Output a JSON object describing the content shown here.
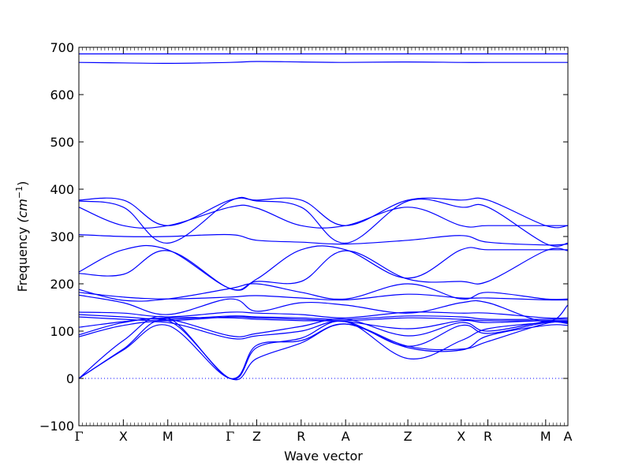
{
  "chart_data": {
    "type": "line",
    "title": "",
    "xlabel": "Wave vector",
    "ylabel_main": "Frequency ",
    "ylabel_unit": "(cm",
    "ylabel_exp": "−1",
    "ylabel_close": ")",
    "ylim": [
      -100,
      700
    ],
    "yticks": [
      -100,
      0,
      100,
      200,
      300,
      400,
      500,
      600,
      700
    ],
    "xlim": [
      0,
      11
    ],
    "kpoints": [
      {
        "label": "Γ",
        "x": 0
      },
      {
        "label": "X",
        "x": 1
      },
      {
        "label": "M",
        "x": 2
      },
      {
        "label": "Γ",
        "x": 3.4
      },
      {
        "label": "Z",
        "x": 4
      },
      {
        "label": "R",
        "x": 5
      },
      {
        "label": "A",
        "x": 6
      },
      {
        "label": "Z",
        "x": 7.4
      },
      {
        "label": "X",
        "x": 8.6
      },
      {
        "label": "R",
        "x": 9.2
      },
      {
        "label": "M",
        "x": 10.5
      },
      {
        "label": "A",
        "x": 11
      }
    ],
    "zero_line": 0,
    "line_color": "#0000ff",
    "series": [
      {
        "x": [
          0,
          1,
          2,
          3.4,
          4,
          5,
          6,
          7.4,
          8.6,
          9.2,
          10.5,
          11
        ],
        "values": [
          668,
          667,
          666,
          668,
          670,
          669,
          668,
          669,
          668,
          668,
          668,
          668
        ]
      },
      {
        "x": [
          0,
          1,
          2,
          3.4,
          4,
          5,
          6,
          7.4,
          8.6,
          9.2,
          10.5,
          11
        ],
        "values": [
          686,
          686,
          686,
          686,
          686,
          686,
          686,
          686,
          686,
          686,
          686,
          686
        ]
      },
      {
        "x": [
          0,
          1,
          2,
          3.4,
          4,
          5,
          6,
          7.4,
          8.6,
          9.2,
          10.5,
          11
        ],
        "values": [
          377,
          377,
          323,
          377,
          377,
          377,
          323,
          377,
          377,
          377,
          323,
          323
        ]
      },
      {
        "x": [
          0,
          1,
          2,
          3.4,
          4,
          5,
          6,
          7.4,
          8.6,
          9.2,
          10.5,
          11
        ],
        "values": [
          375,
          362,
          286,
          375,
          375,
          362,
          286,
          375,
          362,
          362,
          285,
          286
        ]
      },
      {
        "x": [
          0,
          1,
          2,
          3.4,
          4,
          5,
          6,
          7.4,
          8.6,
          9.2,
          10.5,
          11
        ],
        "values": [
          362,
          323,
          323,
          362,
          360,
          323,
          323,
          362,
          323,
          323,
          323,
          323
        ]
      },
      {
        "x": [
          0,
          1,
          2,
          3.4,
          4,
          5,
          6,
          7.4,
          8.6,
          9.2,
          10.5,
          11
        ],
        "values": [
          304,
          300,
          300,
          304,
          292,
          288,
          284,
          292,
          302,
          288,
          282,
          284
        ]
      },
      {
        "x": [
          0,
          1,
          2,
          3.4,
          4,
          5,
          6,
          7.4,
          8.6,
          9.2,
          10.5,
          11
        ],
        "values": [
          225,
          272,
          272,
          190,
          210,
          272,
          272,
          212,
          272,
          272,
          272,
          272
        ]
      },
      {
        "x": [
          0,
          1,
          2,
          3.4,
          4,
          5,
          6,
          7.4,
          8.6,
          9.2,
          10.5,
          11
        ],
        "values": [
          222,
          220,
          270,
          190,
          205,
          205,
          270,
          210,
          205,
          205,
          270,
          270
        ]
      },
      {
        "x": [
          0,
          1,
          2,
          3.4,
          4,
          5,
          6,
          7.4,
          8.6,
          9.2,
          10.5,
          11
        ],
        "values": [
          188,
          165,
          168,
          190,
          200,
          182,
          168,
          200,
          168,
          182,
          168,
          168
        ]
      },
      {
        "x": [
          0,
          1,
          2,
          3.4,
          4,
          5,
          6,
          7.4,
          8.6,
          9.2,
          10.5,
          11
        ],
        "values": [
          182,
          172,
          168,
          172,
          175,
          170,
          166,
          178,
          170,
          170,
          166,
          166
        ]
      },
      {
        "x": [
          0,
          1,
          2,
          3.4,
          4,
          5,
          6,
          7.4,
          8.6,
          9.2,
          10.5,
          11
        ],
        "values": [
          176,
          160,
          135,
          168,
          142,
          160,
          155,
          138,
          160,
          160,
          120,
          155
        ]
      },
      {
        "x": [
          0,
          1,
          2,
          3.4,
          4,
          5,
          6,
          7.4,
          8.6,
          9.2,
          10.5,
          11
        ],
        "values": [
          140,
          138,
          130,
          140,
          138,
          135,
          128,
          140,
          138,
          138,
          128,
          128
        ]
      },
      {
        "x": [
          0,
          1,
          2,
          3.4,
          4,
          5,
          6,
          7.4,
          8.6,
          9.2,
          10.5,
          11
        ],
        "values": [
          135,
          130,
          125,
          132,
          130,
          128,
          125,
          132,
          130,
          125,
          125,
          125
        ]
      },
      {
        "x": [
          0,
          1,
          2,
          3.4,
          4,
          5,
          6,
          7.4,
          8.6,
          9.2,
          10.5,
          11
        ],
        "values": [
          130,
          125,
          122,
          130,
          128,
          125,
          122,
          128,
          125,
          122,
          122,
          122
        ]
      },
      {
        "x": [
          0,
          1,
          2,
          3.4,
          4,
          5,
          6,
          7.4,
          8.6,
          9.2,
          10.5,
          11
        ],
        "values": [
          108,
          120,
          128,
          128,
          125,
          122,
          120,
          105,
          122,
          118,
          122,
          120
        ]
      },
      {
        "x": [
          0,
          1,
          2,
          3.4,
          4,
          5,
          6,
          7.4,
          8.6,
          9.2,
          10.5,
          11
        ],
        "values": [
          92,
          118,
          125,
          90,
          95,
          110,
          125,
          90,
          118,
          100,
          120,
          118
        ]
      },
      {
        "x": [
          0,
          1,
          2,
          3.4,
          4,
          5,
          6,
          7.4,
          8.6,
          9.2,
          10.5,
          11
        ],
        "values": [
          88,
          112,
          118,
          85,
          90,
          100,
          120,
          68,
          112,
          95,
          118,
          116
        ]
      },
      {
        "x": [
          0,
          1,
          2,
          3.4,
          4,
          5,
          6,
          7.4,
          8.6,
          9.2,
          10.5,
          11
        ],
        "values": [
          0,
          80,
          128,
          0,
          65,
          85,
          120,
          42,
          80,
          105,
          118,
          120
        ]
      },
      {
        "x": [
          0,
          1,
          2,
          3.4,
          4,
          5,
          6,
          7.4,
          8.6,
          9.2,
          10.5,
          11
        ],
        "values": [
          0,
          62,
          122,
          0,
          42,
          75,
          115,
          68,
          62,
          78,
          116,
          118
        ]
      },
      {
        "x": [
          0,
          1,
          2,
          3.4,
          4,
          5,
          6,
          7.4,
          8.6,
          9.2,
          10.5,
          11
        ],
        "values": [
          0,
          60,
          112,
          0,
          70,
          80,
          115,
          65,
          60,
          90,
          112,
          112
        ]
      }
    ]
  }
}
